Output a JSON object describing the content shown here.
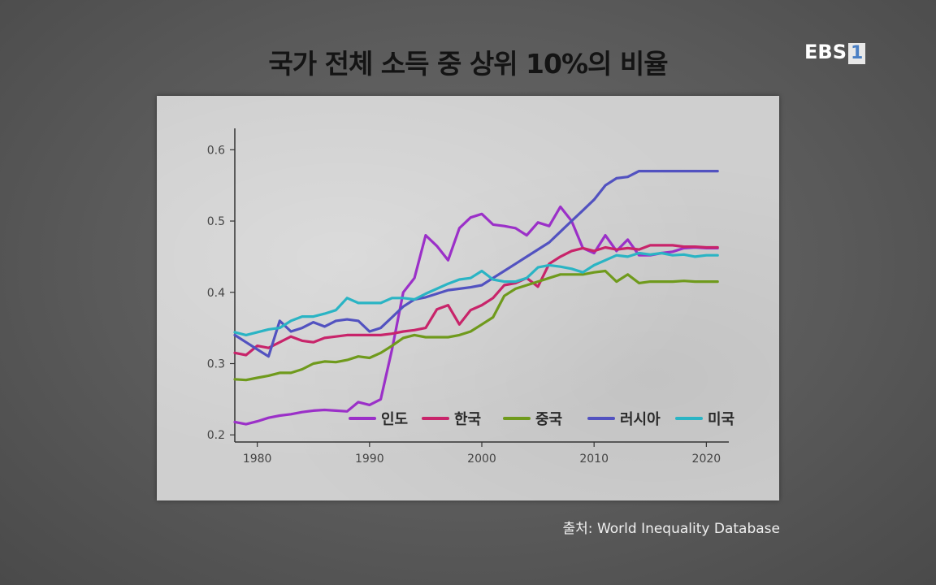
{
  "title": "국가 전체 소득 중 상위 10%의 비율",
  "logo": {
    "text": "EBS",
    "channel": "1"
  },
  "source": "출처: World Inequality Database",
  "chart_data": {
    "type": "line",
    "title": "국가 전체 소득 중 상위 10%의 비율",
    "xlabel": "",
    "ylabel": "",
    "xlim": [
      1978,
      2022
    ],
    "ylim": [
      0.19,
      0.63
    ],
    "x_ticks": [
      1980,
      1990,
      2000,
      2010,
      2020
    ],
    "x_tick_labels": [
      "1980",
      "1990",
      "2000",
      "2010",
      "2020"
    ],
    "y_ticks": [
      0.2,
      0.3,
      0.4,
      0.5,
      0.6
    ],
    "y_tick_labels": [
      "0.2",
      "0.3",
      "0.4",
      "0.5",
      "0.6"
    ],
    "grid": false,
    "legend_position": "bottom-right",
    "x": [
      1978,
      1979,
      1980,
      1981,
      1982,
      1983,
      1984,
      1985,
      1986,
      1987,
      1988,
      1989,
      1990,
      1991,
      1992,
      1993,
      1994,
      1995,
      1996,
      1997,
      1998,
      1999,
      2000,
      2001,
      2002,
      2003,
      2004,
      2005,
      2006,
      2007,
      2008,
      2009,
      2010,
      2011,
      2012,
      2013,
      2014,
      2015,
      2016,
      2017,
      2018,
      2019,
      2020,
      2021
    ],
    "series": [
      {
        "name": "인도",
        "color": "#9b30c8",
        "values": [
          0.218,
          0.215,
          0.219,
          0.224,
          0.227,
          0.229,
          0.232,
          0.234,
          0.235,
          0.234,
          0.233,
          0.246,
          0.242,
          0.25,
          0.32,
          0.4,
          0.42,
          0.48,
          0.465,
          0.445,
          0.49,
          0.505,
          0.51,
          0.495,
          0.493,
          0.49,
          0.48,
          0.498,
          0.493,
          0.52,
          0.5,
          0.462,
          0.455,
          0.48,
          0.458,
          0.474,
          0.452,
          0.452,
          0.455,
          0.457,
          0.462,
          0.463,
          0.462,
          0.462
        ]
      },
      {
        "name": "한국",
        "color": "#c8246a",
        "values": [
          0.315,
          0.312,
          0.325,
          0.322,
          0.33,
          0.338,
          0.332,
          0.33,
          0.336,
          0.338,
          0.34,
          0.34,
          0.34,
          0.34,
          0.342,
          0.345,
          0.347,
          0.35,
          0.376,
          0.382,
          0.355,
          0.375,
          0.382,
          0.392,
          0.41,
          0.413,
          0.42,
          0.408,
          0.44,
          0.45,
          0.458,
          0.462,
          0.458,
          0.463,
          0.46,
          0.462,
          0.46,
          0.466,
          0.466,
          0.466,
          0.464,
          0.464,
          0.463,
          0.463
        ]
      },
      {
        "name": "중국",
        "color": "#6f9a1c",
        "values": [
          0.278,
          0.277,
          0.28,
          0.283,
          0.287,
          0.287,
          0.292,
          0.3,
          0.303,
          0.302,
          0.305,
          0.31,
          0.308,
          0.315,
          0.325,
          0.336,
          0.34,
          0.337,
          0.337,
          0.337,
          0.34,
          0.345,
          0.355,
          0.365,
          0.395,
          0.405,
          0.41,
          0.415,
          0.42,
          0.425,
          0.425,
          0.425,
          0.428,
          0.43,
          0.415,
          0.425,
          0.413,
          0.415,
          0.415,
          0.415,
          0.416,
          0.415,
          0.415,
          0.415
        ]
      },
      {
        "name": "러시아",
        "color": "#5252c0",
        "values": [
          0.34,
          0.33,
          0.32,
          0.31,
          0.36,
          0.345,
          0.35,
          0.358,
          0.352,
          0.36,
          0.362,
          0.36,
          0.345,
          0.35,
          0.365,
          0.38,
          0.39,
          0.393,
          0.398,
          0.403,
          0.405,
          0.407,
          0.41,
          0.42,
          0.43,
          0.44,
          0.45,
          0.46,
          0.47,
          0.485,
          0.5,
          0.515,
          0.53,
          0.55,
          0.56,
          0.562,
          0.57,
          0.57,
          0.57,
          0.57,
          0.57,
          0.57,
          0.57,
          0.57
        ]
      },
      {
        "name": "미국",
        "color": "#2ab4c4",
        "values": [
          0.344,
          0.34,
          0.344,
          0.348,
          0.35,
          0.36,
          0.366,
          0.366,
          0.37,
          0.375,
          0.392,
          0.385,
          0.385,
          0.385,
          0.392,
          0.392,
          0.39,
          0.398,
          0.405,
          0.412,
          0.418,
          0.42,
          0.43,
          0.418,
          0.415,
          0.415,
          0.42,
          0.435,
          0.438,
          0.436,
          0.433,
          0.428,
          0.438,
          0.445,
          0.452,
          0.45,
          0.455,
          0.453,
          0.455,
          0.452,
          0.453,
          0.45,
          0.452,
          0.452
        ]
      }
    ]
  }
}
